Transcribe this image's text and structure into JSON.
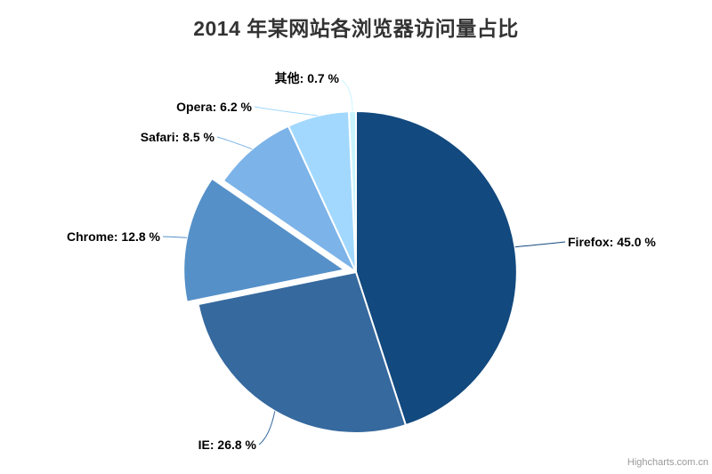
{
  "chart_data": {
    "type": "pie",
    "title": "2014 年某网站各浏览器访问量占比",
    "unit": "%",
    "start_angle_deg": 0,
    "direction": "clockwise",
    "legend": "none",
    "slices": [
      {
        "name": "Firefox",
        "value": 45.0,
        "label": "Firefox: 45.0 %",
        "color": "#12497e",
        "sliced": false
      },
      {
        "name": "IE",
        "value": 26.8,
        "label": "IE: 26.8 %",
        "color": "#36699e",
        "sliced": false
      },
      {
        "name": "Chrome",
        "value": 12.8,
        "label": "Chrome: 12.8 %",
        "color": "#5590c8",
        "sliced": true
      },
      {
        "name": "Safari",
        "value": 8.5,
        "label": "Safari: 8.5 %",
        "color": "#7cb3e8",
        "sliced": false
      },
      {
        "name": "Opera",
        "value": 6.2,
        "label": "Opera: 6.2 %",
        "color": "#a2d8fd",
        "sliced": false
      },
      {
        "name": "其他",
        "value": 0.7,
        "label": "其他: 0.7 %",
        "color": "#c8f5ff",
        "sliced": false
      }
    ],
    "colors": {
      "title": "#333333",
      "data_label": "#000000",
      "slice_border": "#ffffff",
      "credits": "#999999"
    }
  },
  "credits": {
    "text": "Highcharts.com.cn"
  }
}
